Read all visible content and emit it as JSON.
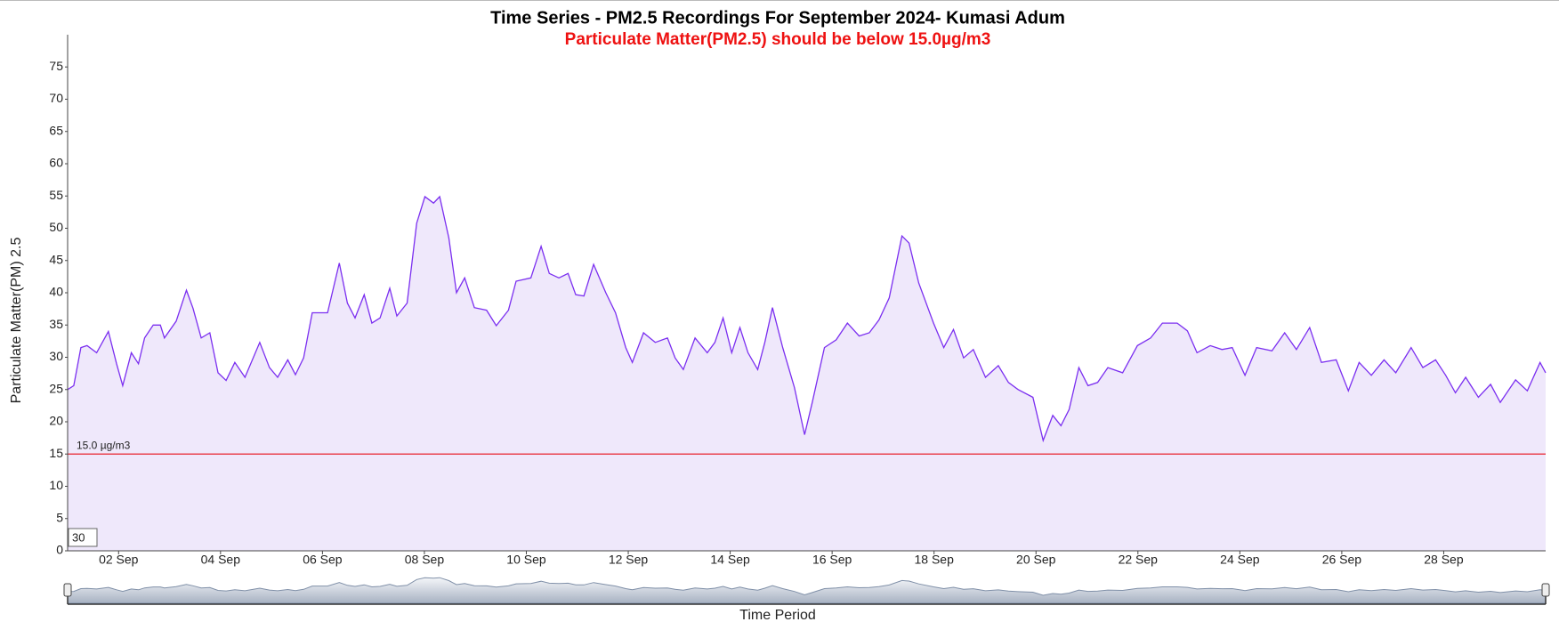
{
  "chart_data": {
    "type": "area",
    "title": "Time Series - PM2.5 Recordings For September 2024- Kumasi Adum",
    "subtitle": "Particulate Matter(PM2.5) should be below 15.0µg/m3",
    "y_label": "Particulate Matter(PM) 2.5",
    "x_label": "Time Period",
    "roll_period": 30,
    "color": "#7b2ff0",
    "fill_color": "#efe8fb",
    "threshold": {
      "value": 15,
      "label": "15.0 µg/m3",
      "color": "#e8202a"
    },
    "xlim": [
      1,
      30
    ],
    "xticks": [
      {
        "value": 2,
        "label": "02 Sep"
      },
      {
        "value": 4,
        "label": "04 Sep"
      },
      {
        "value": 6,
        "label": "06 Sep"
      },
      {
        "value": 8,
        "label": "08 Sep"
      },
      {
        "value": 10,
        "label": "10 Sep"
      },
      {
        "value": 12,
        "label": "12 Sep"
      },
      {
        "value": 14,
        "label": "14 Sep"
      },
      {
        "value": 16,
        "label": "16 Sep"
      },
      {
        "value": 18,
        "label": "18 Sep"
      },
      {
        "value": 20,
        "label": "20 Sep"
      },
      {
        "value": 22,
        "label": "22 Sep"
      },
      {
        "value": 24,
        "label": "24 Sep"
      },
      {
        "value": 26,
        "label": "26 Sep"
      },
      {
        "value": 28,
        "label": "28 Sep"
      }
    ],
    "ylim": [
      0,
      80
    ],
    "yticks": [
      0,
      5,
      10,
      15,
      20,
      25,
      30,
      35,
      40,
      45,
      50,
      55,
      60,
      65,
      70,
      75
    ],
    "x": [
      1.0,
      1.12,
      1.26,
      1.38,
      1.57,
      1.8,
      1.96,
      2.08,
      2.25,
      2.39,
      2.51,
      2.68,
      2.82,
      2.9,
      3.13,
      3.33,
      3.46,
      3.62,
      3.79,
      3.95,
      4.11,
      4.28,
      4.48,
      4.77,
      4.96,
      5.12,
      5.32,
      5.47,
      5.63,
      5.8,
      6.1,
      6.33,
      6.49,
      6.64,
      6.82,
      6.97,
      7.13,
      7.32,
      7.46,
      7.66,
      7.85,
      8.01,
      8.18,
      8.3,
      8.48,
      8.63,
      8.79,
      8.98,
      9.22,
      9.41,
      9.65,
      9.8,
      10.09,
      10.29,
      10.45,
      10.64,
      10.82,
      10.97,
      11.13,
      11.32,
      11.56,
      11.75,
      11.95,
      12.08,
      12.3,
      12.53,
      12.77,
      12.92,
      13.08,
      13.31,
      13.55,
      13.7,
      13.86,
      14.03,
      14.19,
      14.35,
      14.54,
      14.68,
      14.83,
      15.03,
      15.26,
      15.46,
      15.61,
      15.85,
      16.08,
      16.3,
      16.53,
      16.73,
      16.92,
      17.12,
      17.37,
      17.51,
      17.7,
      17.99,
      18.19,
      18.38,
      18.58,
      18.77,
      19.01,
      19.26,
      19.46,
      19.65,
      19.94,
      20.14,
      20.33,
      20.49,
      20.65,
      20.84,
      21.02,
      21.21,
      21.41,
      21.7,
      21.99,
      22.25,
      22.48,
      22.77,
      22.97,
      23.16,
      23.42,
      23.65,
      23.85,
      24.1,
      24.33,
      24.63,
      24.88,
      25.11,
      25.37,
      25.6,
      25.89,
      26.13,
      26.34,
      26.58,
      26.83,
      27.06,
      27.36,
      27.59,
      27.84,
      28.04,
      28.23,
      28.43,
      28.68,
      28.92,
      29.11,
      29.41,
      29.64,
      29.89,
      30.0
    ],
    "values": [
      25,
      25.6,
      31.5,
      31.8,
      30.7,
      34,
      29,
      25.6,
      30.7,
      29,
      33,
      35,
      35,
      33,
      35.6,
      40.4,
      37.6,
      33,
      33.8,
      27.6,
      26.4,
      29.2,
      26.9,
      32.3,
      28.4,
      26.9,
      29.6,
      27.3,
      29.9,
      36.9,
      36.9,
      44.6,
      38.4,
      36.1,
      39.7,
      35.3,
      36.1,
      40.7,
      36.4,
      38.4,
      50.8,
      54.9,
      53.9,
      54.9,
      48.5,
      40,
      42.3,
      37.7,
      37.3,
      34.9,
      37.3,
      41.8,
      42.3,
      47.2,
      43,
      42.3,
      43,
      39.7,
      39.5,
      44.4,
      40,
      36.9,
      31.5,
      29.2,
      33.8,
      32.3,
      33,
      29.9,
      28.1,
      33,
      30.7,
      32.3,
      36.1,
      30.7,
      34.6,
      30.7,
      28.1,
      32.3,
      37.7,
      31.5,
      25.3,
      18,
      23,
      31.5,
      32.7,
      35.3,
      33.3,
      33.8,
      35.8,
      39.2,
      48.8,
      47.7,
      41.5,
      35.3,
      31.5,
      34.3,
      29.9,
      31.2,
      26.9,
      28.7,
      26.1,
      25,
      23.8,
      17.1,
      21,
      19.4,
      21.9,
      28.4,
      25.6,
      26.1,
      28.4,
      27.6,
      31.8,
      33,
      35.3,
      35.3,
      34.1,
      30.7,
      31.8,
      31.2,
      31.5,
      27.2,
      31.5,
      31,
      33.8,
      31.2,
      34.6,
      29.2,
      29.6,
      24.8,
      29.2,
      27.2,
      29.6,
      27.6,
      31.5,
      28.4,
      29.6,
      27.2,
      24.5,
      26.9,
      23.8,
      25.8,
      23,
      26.5,
      24.8,
      29.2,
      27.6
    ]
  }
}
